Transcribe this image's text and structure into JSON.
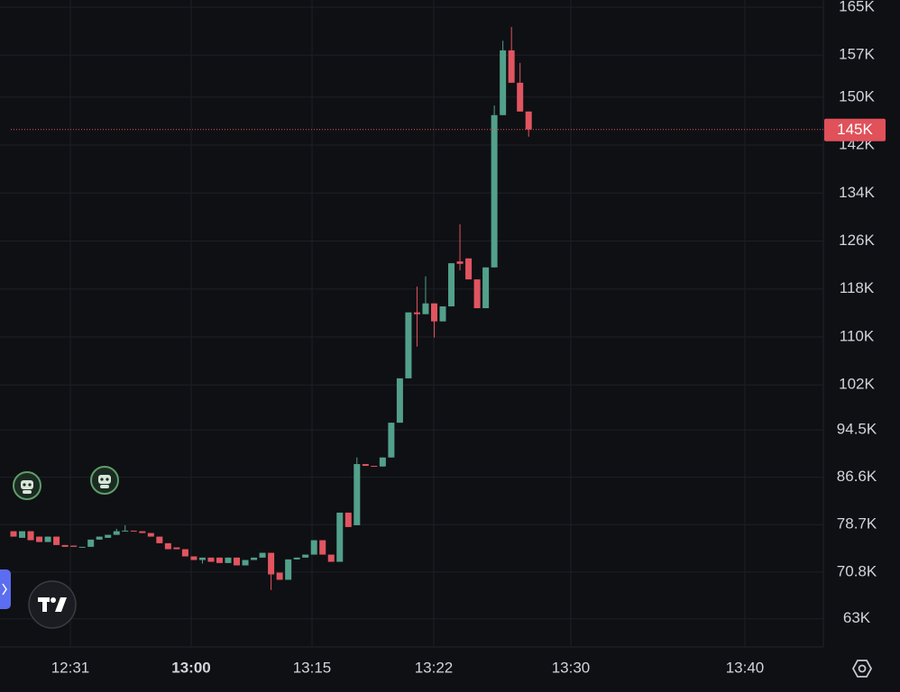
{
  "chart_data": {
    "type": "candlestick",
    "open": [
      77.6,
      76.5,
      77.6,
      76.7,
      75.8,
      76.7,
      75.3,
      75.2,
      75.0,
      75.0,
      76.2,
      76.5,
      77.0,
      77.6,
      77.7,
      77.6,
      77.3,
      76.7,
      75.6,
      74.9,
      74.6,
      73.4,
      72.8,
      73.2,
      73.2,
      72.3,
      73.2,
      71.9,
      72.8,
      73.2,
      74.0,
      70.7,
      69.5,
      72.9,
      73.2,
      73.7,
      76.1,
      73.7,
      72.5,
      80.7,
      78.6,
      88.8,
      88.5,
      88.4,
      89.9,
      95.7,
      103.1,
      114.1,
      113.8,
      115.6,
      112.6,
      115.1,
      122.6,
      123.1,
      119.6,
      114.8,
      121.6,
      147.0,
      157.8,
      152.4,
      147.6
    ],
    "high": [
      77.6,
      77.6,
      77.6,
      76.7,
      76.7,
      76.7,
      75.3,
      75.2,
      75.0,
      76.2,
      76.7,
      77.0,
      78.0,
      78.6,
      77.7,
      77.6,
      77.3,
      76.7,
      75.6,
      74.9,
      74.6,
      73.4,
      73.2,
      73.2,
      73.2,
      73.2,
      73.2,
      72.8,
      73.2,
      74.0,
      74.0,
      70.7,
      72.9,
      73.2,
      73.7,
      76.1,
      76.1,
      73.7,
      80.7,
      80.7,
      89.9,
      88.8,
      88.5,
      89.9,
      95.7,
      103.1,
      114.1,
      118.4,
      120.1,
      115.6,
      115.1,
      122.3,
      128.8,
      123.1,
      119.6,
      121.6,
      148.6,
      159.4,
      161.7,
      155.7,
      147.6
    ],
    "low": [
      76.7,
      76.5,
      76.1,
      75.8,
      75.8,
      75.3,
      75.0,
      75.0,
      75.0,
      75.0,
      76.2,
      76.5,
      77.0,
      77.6,
      77.6,
      77.3,
      76.7,
      75.6,
      74.6,
      74.6,
      73.4,
      72.8,
      72.2,
      72.5,
      72.3,
      72.3,
      71.9,
      71.9,
      72.8,
      73.2,
      67.8,
      69.5,
      69.5,
      72.9,
      73.2,
      73.7,
      73.7,
      72.5,
      72.5,
      78.3,
      78.6,
      88.5,
      88.4,
      88.4,
      89.9,
      95.7,
      103.1,
      108.4,
      113.8,
      109.9,
      112.6,
      115.1,
      121.1,
      119.6,
      114.8,
      114.8,
      121.6,
      147.0,
      152.4,
      147.6,
      143.4
    ],
    "close": [
      76.7,
      77.6,
      76.1,
      75.8,
      76.7,
      75.3,
      75.0,
      75.0,
      75.0,
      76.2,
      76.7,
      77.0,
      77.6,
      77.7,
      77.6,
      77.3,
      76.7,
      75.6,
      74.6,
      74.6,
      73.4,
      72.8,
      73.2,
      72.5,
      72.3,
      73.2,
      71.9,
      72.8,
      73.2,
      74.0,
      70.4,
      69.5,
      72.9,
      73.2,
      73.7,
      76.1,
      73.7,
      72.5,
      80.7,
      78.3,
      88.8,
      88.5,
      88.4,
      89.9,
      95.7,
      103.1,
      114.1,
      113.8,
      115.6,
      112.6,
      115.1,
      122.3,
      122.2,
      119.6,
      114.8,
      121.6,
      147.0,
      157.8,
      152.4,
      147.6,
      144.6
    ],
    "colors": {
      "up": "#52a08b",
      "down": "#e05560"
    },
    "ylim": [
      58.3,
      166.2
    ],
    "yticks": [
      {
        "value": 63,
        "label": "63K"
      },
      {
        "value": 70.8,
        "label": "70.8K"
      },
      {
        "value": 78.7,
        "label": "78.7K"
      },
      {
        "value": 86.6,
        "label": "86.6K"
      },
      {
        "value": 94.5,
        "label": "94.5K"
      },
      {
        "value": 102,
        "label": "102K"
      },
      {
        "value": 110,
        "label": "110K"
      },
      {
        "value": 118,
        "label": "118K"
      },
      {
        "value": 126,
        "label": "126K"
      },
      {
        "value": 134,
        "label": "134K"
      },
      {
        "value": 142,
        "label": "142K"
      },
      {
        "value": 150,
        "label": "150K"
      },
      {
        "value": 157,
        "label": "157K"
      },
      {
        "value": 165,
        "label": "165K"
      }
    ],
    "x_labels": [
      "12:31",
      "13:00",
      "13:15",
      "13:22",
      "13:30",
      "13:40"
    ],
    "current_price": {
      "value": 144.6,
      "label": "145K",
      "color": "#e0515a"
    },
    "grid": true
  }
}
